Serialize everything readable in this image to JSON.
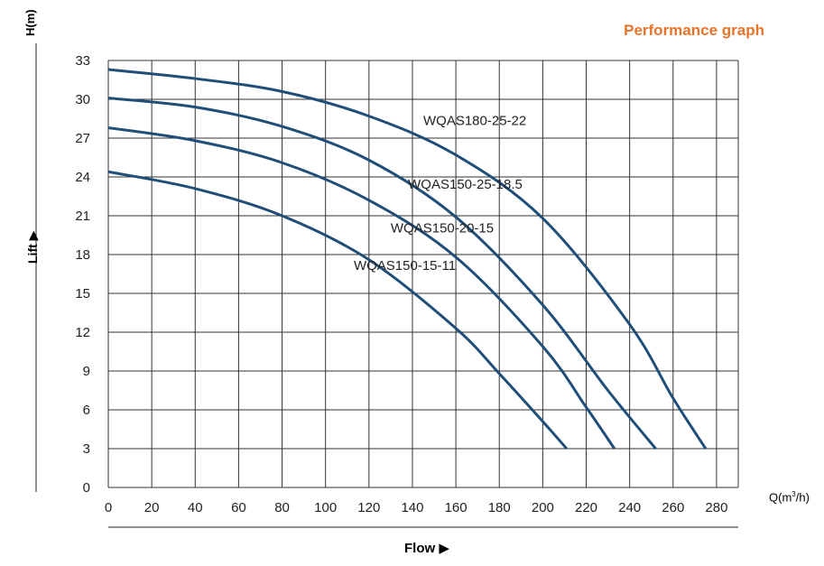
{
  "header": {
    "title": "Performance graph",
    "title_color": "#e8732a"
  },
  "axes": {
    "y_title": "H(m)",
    "lift_label": "Lift",
    "flow_label": "Flow",
    "x_unit_prefix": "Q(m",
    "x_unit_sup": "3",
    "x_unit_suffix": "/h)"
  },
  "chart_data": {
    "type": "line",
    "title": "Performance graph",
    "xlabel": "Q(m³/h)",
    "ylabel": "H(m)",
    "xlim": [
      0,
      290
    ],
    "ylim": [
      0,
      33
    ],
    "x_ticks": [
      0,
      20,
      40,
      60,
      80,
      100,
      120,
      140,
      160,
      180,
      200,
      220,
      240,
      260,
      280
    ],
    "y_ticks": [
      0,
      3,
      6,
      9,
      12,
      15,
      18,
      21,
      24,
      27,
      30,
      33
    ],
    "grid": true,
    "line_color": "#1f4e79",
    "series": [
      {
        "name": "WQAS180-25-22",
        "label_at": [
          145,
          28
        ],
        "x": [
          0,
          40,
          80,
          120,
          160,
          200,
          240,
          260,
          275
        ],
        "y": [
          32.3,
          31.6,
          30.6,
          28.7,
          25.7,
          20.8,
          12.6,
          6.9,
          3
        ]
      },
      {
        "name": "WQAS150-25-18.5",
        "label_at": [
          138,
          23.1
        ],
        "x": [
          0,
          40,
          80,
          120,
          160,
          200,
          230,
          252
        ],
        "y": [
          30.1,
          29.4,
          27.9,
          25.3,
          20.9,
          14.1,
          7.5,
          3
        ]
      },
      {
        "name": "WQAS150-20-15",
        "label_at": [
          130,
          19.7
        ],
        "x": [
          0,
          40,
          80,
          120,
          160,
          200,
          220,
          233
        ],
        "y": [
          27.8,
          26.8,
          25.1,
          22.2,
          17.8,
          10.9,
          6.2,
          3
        ]
      },
      {
        "name": "WQAS150-15-11",
        "label_at": [
          113,
          16.8
        ],
        "x": [
          0,
          40,
          80,
          120,
          160,
          180,
          200,
          211
        ],
        "y": [
          24.4,
          23.1,
          21.0,
          17.6,
          12.3,
          8.8,
          5.1,
          3
        ]
      }
    ]
  }
}
